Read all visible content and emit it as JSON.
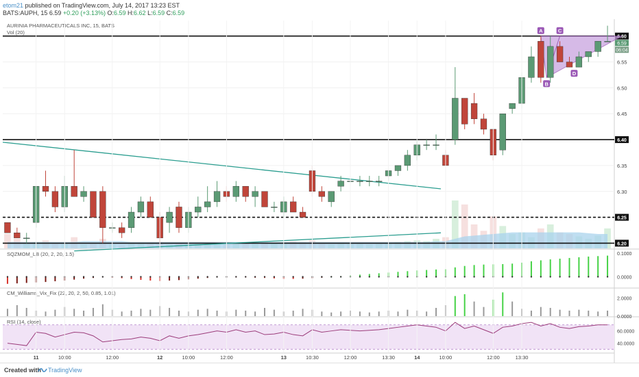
{
  "header": {
    "user": "etom21",
    "published": " published on TradingView.com, July 14, 2017 13:23 EST",
    "symbol_line": "BATS:AUPH, 15",
    "last": "6.59",
    "change": "+0.20 (+3.13%)",
    "open_label": "O:",
    "open": "6.59",
    "high_label": "H:",
    "high": "6.62",
    "low_label": "L:",
    "low": "6.59",
    "close_label": "C:",
    "close": "6.59"
  },
  "legends": {
    "main": "AURINIA PHARMACEUTICALS INC, 15, BATS",
    "vol": "Vol (20)",
    "sqz": "SQZMOM_LB (20, 2, 20, 1.5)",
    "vix": "CM_Williams_Vix_Fix (22, 20, 2, 50, 0.85, 1.01)",
    "rsi": "RSI (14, close)"
  },
  "footer": {
    "created": "Created with",
    "brand": "TradingView"
  },
  "colors": {
    "up_candle": "#5b9a74",
    "down_candle": "#c0453a",
    "trend": "#2a9d8f",
    "harmonic": "#9b59b6",
    "harmonic_fill": "#c9a4e0",
    "rsi_line": "#9b3b7a",
    "rsi_band": "#f1e3f6",
    "sqz_green": "#46d246",
    "sqz_red": "#d9342b",
    "volume_area": "#a9d3ec"
  },
  "chart_data": [
    {
      "type": "candlestick",
      "title": "AURINIA PHARMACEUTICALS INC, 15, BATS",
      "x_labels": [
        {
          "i": 3,
          "t": "11"
        },
        {
          "i": 6,
          "t": "10:00"
        },
        {
          "i": 11,
          "t": "12:00"
        },
        {
          "i": 16,
          "t": "12"
        },
        {
          "i": 19,
          "t": "10:00"
        },
        {
          "i": 23,
          "t": "12:00"
        },
        {
          "i": 29,
          "t": "13"
        },
        {
          "i": 32,
          "t": "10:30"
        },
        {
          "i": 36,
          "t": "12:00"
        },
        {
          "i": 40,
          "t": "13:30"
        },
        {
          "i": 43,
          "t": "14"
        },
        {
          "i": 46,
          "t": "10:00"
        },
        {
          "i": 51,
          "t": "12:00"
        },
        {
          "i": 54,
          "t": "13:30"
        }
      ],
      "ylim": [
        6.19,
        6.63
      ],
      "y_ticks": [
        "6.20",
        "6.25",
        "6.30",
        "6.35",
        "6.40",
        "6.45",
        "6.50",
        "6.55",
        "6.60"
      ],
      "price_badges": [
        "6.59",
        "06:04"
      ],
      "horizontal_levels": [
        {
          "value": 6.6,
          "style": "solid",
          "label": "6.60"
        },
        {
          "value": 6.4,
          "style": "solid",
          "label": "6.40"
        },
        {
          "value": 6.25,
          "style": "dashed",
          "label": "6.25"
        },
        {
          "value": 6.2,
          "style": "solid",
          "label": "6.20"
        }
      ],
      "candles": [
        [
          6.24,
          6.24,
          6.22,
          6.22
        ],
        [
          6.22,
          6.23,
          6.21,
          6.21
        ],
        [
          6.21,
          6.22,
          6.2,
          6.21
        ],
        [
          6.24,
          6.31,
          6.23,
          6.31
        ],
        [
          6.31,
          6.34,
          6.29,
          6.3
        ],
        [
          6.3,
          6.31,
          6.26,
          6.27
        ],
        [
          6.27,
          6.33,
          6.26,
          6.31
        ],
        [
          6.31,
          6.38,
          6.29,
          6.29
        ],
        [
          6.29,
          6.31,
          6.28,
          6.3
        ],
        [
          6.3,
          6.3,
          6.25,
          6.25
        ],
        [
          6.3,
          6.31,
          6.2,
          6.23
        ],
        [
          6.23,
          6.24,
          6.22,
          6.23
        ],
        [
          6.23,
          6.24,
          6.21,
          6.22
        ],
        [
          6.23,
          6.27,
          6.22,
          6.26
        ],
        [
          6.26,
          6.29,
          6.25,
          6.28
        ],
        [
          6.28,
          6.29,
          6.25,
          6.25
        ],
        [
          6.25,
          6.26,
          6.2,
          6.21
        ],
        [
          6.24,
          6.27,
          6.22,
          6.26
        ],
        [
          6.27,
          6.28,
          6.22,
          6.23
        ],
        [
          6.23,
          6.27,
          6.22,
          6.26
        ],
        [
          6.26,
          6.29,
          6.25,
          6.27
        ],
        [
          6.27,
          6.31,
          6.26,
          6.28
        ],
        [
          6.28,
          6.32,
          6.27,
          6.3
        ],
        [
          6.3,
          6.31,
          6.28,
          6.29
        ],
        [
          6.29,
          6.32,
          6.28,
          6.31
        ],
        [
          6.31,
          6.31,
          6.28,
          6.29
        ],
        [
          6.29,
          6.31,
          6.27,
          6.3
        ],
        [
          6.3,
          6.3,
          6.27,
          6.27
        ],
        [
          6.27,
          6.28,
          6.26,
          6.27
        ],
        [
          6.26,
          6.29,
          6.25,
          6.28
        ],
        [
          6.28,
          6.29,
          6.26,
          6.26
        ],
        [
          6.26,
          6.27,
          6.25,
          6.25
        ],
        [
          6.34,
          6.35,
          6.29,
          6.3
        ],
        [
          6.3,
          6.31,
          6.28,
          6.29
        ],
        [
          6.28,
          6.3,
          6.27,
          6.3
        ],
        [
          6.31,
          6.33,
          6.3,
          6.32
        ],
        [
          6.32,
          6.33,
          6.31,
          6.32
        ],
        [
          6.32,
          6.33,
          6.31,
          6.32
        ],
        [
          6.32,
          6.33,
          6.31,
          6.32
        ],
        [
          6.32,
          6.33,
          6.31,
          6.32
        ],
        [
          6.33,
          6.34,
          6.32,
          6.34
        ],
        [
          6.34,
          6.35,
          6.33,
          6.35
        ],
        [
          6.35,
          6.38,
          6.34,
          6.37
        ],
        [
          6.37,
          6.4,
          6.36,
          6.39
        ],
        [
          6.39,
          6.4,
          6.38,
          6.39
        ],
        [
          6.39,
          6.41,
          6.38,
          6.39
        ],
        [
          6.37,
          6.38,
          6.35,
          6.35
        ],
        [
          6.4,
          6.54,
          6.39,
          6.48
        ],
        [
          6.48,
          6.48,
          6.42,
          6.43
        ],
        [
          6.47,
          6.49,
          6.43,
          6.44
        ],
        [
          6.44,
          6.45,
          6.41,
          6.42
        ],
        [
          6.42,
          6.42,
          6.36,
          6.37
        ],
        [
          6.38,
          6.45,
          6.37,
          6.45
        ],
        [
          6.46,
          6.47,
          6.45,
          6.47
        ],
        [
          6.47,
          6.53,
          6.46,
          6.52
        ],
        [
          6.52,
          6.58,
          6.51,
          6.56
        ],
        [
          6.59,
          6.6,
          6.51,
          6.52
        ],
        [
          6.52,
          6.6,
          6.51,
          6.58
        ],
        [
          6.58,
          6.59,
          6.55,
          6.55
        ],
        [
          6.55,
          6.56,
          6.54,
          6.54
        ],
        [
          6.54,
          6.57,
          6.54,
          6.56
        ],
        [
          6.56,
          6.57,
          6.55,
          6.57
        ],
        [
          6.57,
          6.59,
          6.56,
          6.59
        ],
        [
          6.59,
          6.62,
          6.59,
          6.59
        ]
      ],
      "trendlines": [
        {
          "from": [
            -0.5,
            6.395
          ],
          "to": [
            45.5,
            6.305
          ]
        },
        {
          "from": [
            7,
            6.185
          ],
          "to": [
            45.5,
            6.22
          ]
        }
      ],
      "harmonic_pattern": {
        "points": [
          {
            "label": "A",
            "i": 56,
            "price": 6.6
          },
          {
            "label": "B",
            "i": 56.6,
            "price": 6.52
          },
          {
            "label": "C",
            "i": 58,
            "price": 6.6
          },
          {
            "label": "D",
            "i": 59.5,
            "price": 6.54
          }
        ],
        "apex": {
          "i": 64.5,
          "price": 6.6
        }
      },
      "volume": [
        18,
        12,
        6,
        8,
        10,
        6,
        7,
        14,
        5,
        6,
        12,
        5,
        4,
        6,
        6,
        7,
        8,
        5,
        6,
        5,
        7,
        6,
        6,
        5,
        7,
        6,
        6,
        8,
        6,
        7,
        9,
        8,
        10,
        6,
        5,
        7,
        6,
        6,
        5,
        6,
        7,
        8,
        9,
        10,
        9,
        12,
        14,
        60,
        55,
        30,
        22,
        40,
        28,
        18,
        20,
        14,
        25,
        30,
        20,
        18,
        15,
        12,
        16,
        25
      ],
      "volume_ma": [
        8,
        8,
        8,
        8,
        8,
        8,
        8,
        8,
        9,
        9,
        9,
        9,
        9,
        8,
        8,
        8,
        8,
        8,
        8,
        8,
        8,
        8,
        8,
        8,
        8,
        8,
        8,
        8,
        8,
        8,
        8,
        8,
        8,
        8,
        8,
        8,
        8,
        8,
        8,
        8,
        8,
        8,
        8,
        8,
        8,
        9,
        9,
        12,
        15,
        16,
        17,
        18,
        19,
        20,
        20,
        20,
        20,
        20,
        20,
        20,
        20,
        19,
        18,
        18
      ]
    },
    {
      "type": "bar",
      "title": "SQZMOM_LB (20, 2, 20, 1.5)",
      "ylim": [
        -0.045,
        0.115
      ],
      "y_ticks": [
        "0.1000",
        "0.0000"
      ],
      "values": [
        -0.03,
        -0.028,
        -0.026,
        -0.024,
        -0.022,
        -0.019,
        -0.016,
        -0.012,
        -0.008,
        -0.005,
        -0.002,
        -0.004,
        -0.006,
        -0.01,
        -0.013,
        -0.016,
        -0.018,
        -0.016,
        -0.014,
        -0.011,
        -0.008,
        -0.005,
        -0.003,
        -0.002,
        -0.002,
        -0.003,
        -0.004,
        -0.005,
        -0.007,
        -0.009,
        -0.009,
        -0.008,
        -0.006,
        -0.004,
        0.001,
        0.003,
        0.006,
        0.009,
        0.012,
        0.015,
        0.018,
        0.021,
        0.024,
        0.027,
        0.029,
        0.031,
        0.032,
        0.04,
        0.046,
        0.05,
        0.052,
        0.053,
        0.054,
        0.056,
        0.06,
        0.066,
        0.07,
        0.074,
        0.077,
        0.08,
        0.083,
        0.086,
        0.088,
        0.09
      ]
    },
    {
      "type": "bar",
      "title": "CM_Williams_Vix_Fix (22, 20, 2, 50, 0.85, 1.01)",
      "ylim": [
        0,
        3.0
      ],
      "y_ticks": [
        "2.0000",
        "0.0000"
      ],
      "values": [
        0.8,
        1.2,
        0.9,
        0.6,
        0.5,
        0.7,
        1.0,
        0.8,
        0.6,
        0.9,
        1.3,
        0.7,
        0.5,
        0.6,
        0.8,
        0.7,
        1.1,
        0.9,
        0.6,
        0.5,
        0.7,
        0.8,
        0.6,
        0.5,
        0.7,
        0.6,
        0.5,
        0.9,
        0.7,
        0.5,
        0.6,
        0.8,
        0.7,
        0.5,
        0.4,
        0.5,
        0.6,
        0.5,
        0.4,
        0.5,
        0.6,
        0.5,
        0.7,
        0.6,
        0.5,
        0.9,
        1.2,
        2.2,
        2.4,
        1.6,
        1.0,
        1.8,
        2.6,
        1.6,
        0.8,
        0.6,
        1.0,
        0.9,
        0.7,
        0.6,
        0.7,
        0.6,
        0.5,
        0.6
      ],
      "highlight_indices": [
        47,
        48,
        51,
        52
      ]
    },
    {
      "type": "line",
      "title": "RSI (14, close)",
      "ylim": [
        25,
        82
      ],
      "y_ticks": [
        "60.0000",
        "40.0000"
      ],
      "band": [
        30,
        70
      ],
      "values": [
        40,
        38,
        36,
        58,
        56,
        50,
        54,
        58,
        57,
        52,
        42,
        44,
        46,
        47,
        50,
        48,
        44,
        52,
        48,
        52,
        54,
        57,
        60,
        58,
        62,
        58,
        60,
        54,
        55,
        58,
        54,
        52,
        62,
        58,
        60,
        62,
        61,
        60,
        61,
        62,
        64,
        66,
        68,
        70,
        68,
        66,
        60,
        74,
        64,
        68,
        62,
        56,
        66,
        68,
        72,
        74,
        68,
        72,
        66,
        64,
        67,
        68,
        70,
        70
      ]
    }
  ]
}
